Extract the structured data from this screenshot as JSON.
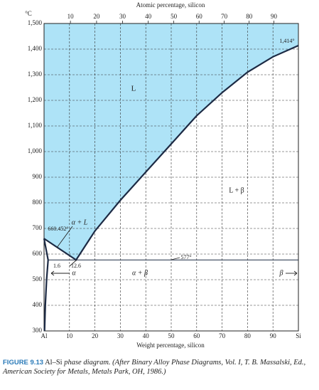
{
  "chart_data": {
    "type": "line",
    "title": "Atomic percentage, silicon",
    "xlabel": "Weight percentage, silicon",
    "ylabel": "°C",
    "xlim": [
      0,
      100
    ],
    "ylim": [
      300,
      1500
    ],
    "xticks": [
      {
        "value": 0,
        "label": "Al"
      },
      10,
      20,
      30,
      40,
      50,
      60,
      70,
      80,
      90,
      {
        "value": 100,
        "label": "Si"
      }
    ],
    "x2ticks": [
      {
        "value": 10.37,
        "label": "10"
      },
      {
        "value": 20.65,
        "label": "20"
      },
      {
        "value": 30.85,
        "label": "30"
      },
      {
        "value": 40.97,
        "label": "40"
      },
      {
        "value": 51.01,
        "label": "50"
      },
      {
        "value": 60.96,
        "label": "60"
      },
      {
        "value": 70.84,
        "label": "70"
      },
      {
        "value": 80.64,
        "label": "80"
      },
      {
        "value": 90.36,
        "label": "90"
      }
    ],
    "yticks": [
      300,
      400,
      500,
      600,
      700,
      800,
      900,
      {
        "value": 1000,
        "label": "1,000"
      },
      {
        "value": 1100,
        "label": "1,100"
      },
      {
        "value": 1200,
        "label": "1,200"
      },
      {
        "value": 1300,
        "label": "1,300"
      },
      {
        "value": 1400,
        "label": "1,400"
      },
      {
        "value": 1500,
        "label": "1,500"
      }
    ],
    "grid": true,
    "region_color": "#aee3f7",
    "series": [
      {
        "color": "#1c2a44",
        "x": [
          0,
          12.6,
          20,
          30,
          40,
          50,
          60,
          70,
          80,
          90,
          100
        ],
        "values": [
          660.452,
          577,
          690,
          810,
          920,
          1030,
          1140,
          1230,
          1310,
          1370,
          1414
        ]
      },
      {
        "color": "#1c2a44",
        "x": [
          0,
          1.6
        ],
        "values": [
          660.452,
          577
        ]
      },
      {
        "color": "#1c2a44",
        "x": [
          1.6,
          1.0,
          0.5,
          0.2
        ],
        "values": [
          577,
          500,
          400,
          300
        ]
      },
      {
        "color": "#1c2a44",
        "x": [
          1.6,
          100
        ],
        "values": [
          577,
          577
        ]
      }
    ],
    "annotations": [
      "L",
      "L + β",
      "α + L",
      "α + β",
      "660.452°",
      "577°",
      "1,414°",
      "1.6",
      "12.6",
      "α",
      "β"
    ]
  },
  "caption": {
    "label": "FIGURE 9.13",
    "text": "Al–Si",
    "italic": "phase diagram. (After Binary Alloy Phase Diagrams, Vol. I, T. B. Massalski, Ed., American Society for Metals, Metals Park, OH, 1986.)"
  }
}
